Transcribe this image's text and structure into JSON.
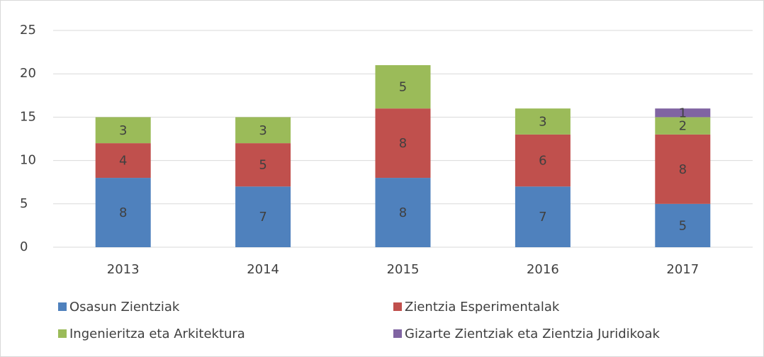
{
  "chart_data": {
    "type": "stacked_bar",
    "categories": [
      "2013",
      "2014",
      "2015",
      "2016",
      "2017"
    ],
    "series": [
      {
        "name": "Osasun Zientziak",
        "color": "#4f81bd",
        "values": [
          8,
          7,
          8,
          7,
          5
        ]
      },
      {
        "name": "Zientzia Esperimentalak",
        "color": "#c0504d",
        "values": [
          4,
          5,
          8,
          6,
          8
        ]
      },
      {
        "name": "Ingenieritza eta Arkitektura",
        "color": "#9bbb59",
        "values": [
          3,
          3,
          5,
          3,
          2
        ]
      },
      {
        "name": "Gizarte Zientziak eta Zientzia Juridikoak",
        "color": "#8064a2",
        "values": [
          null,
          null,
          null,
          null,
          1
        ]
      }
    ],
    "ylim": [
      0,
      25
    ],
    "yticks": [
      0,
      5,
      10,
      15,
      20,
      25
    ],
    "grid": true,
    "legend": "bottom"
  }
}
